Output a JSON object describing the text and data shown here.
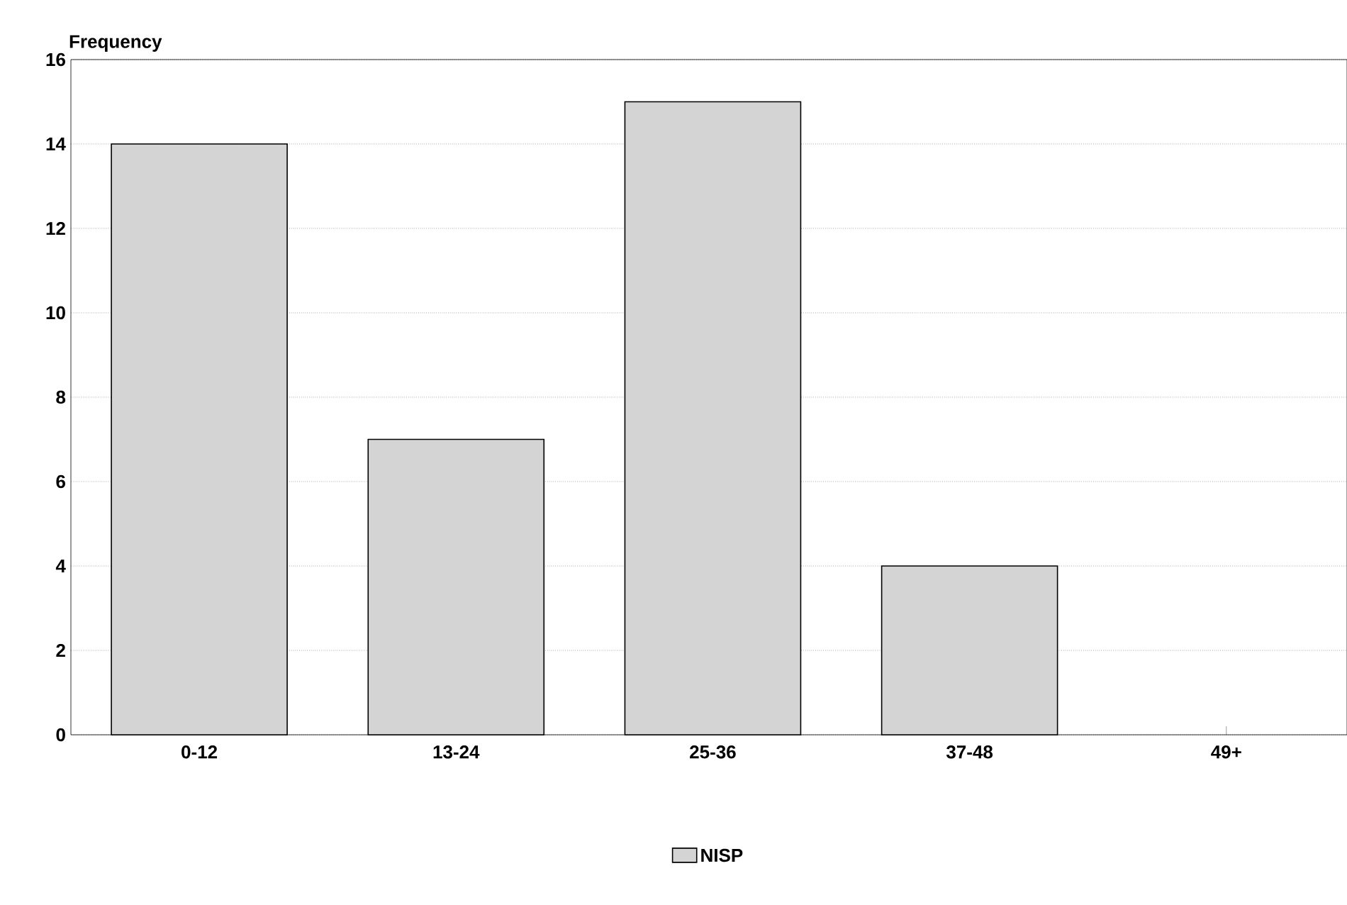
{
  "chart_data": {
    "type": "bar",
    "ylabel": "Frequency",
    "categories": [
      "0-12",
      "13-24",
      "25-36",
      "37-48",
      "49+"
    ],
    "series": [
      {
        "name": "NISP",
        "color": "#d4d4d4",
        "values": [
          14,
          7,
          15,
          4,
          0
        ]
      }
    ],
    "ylim": [
      0,
      16
    ],
    "yticks": [
      0,
      2,
      4,
      6,
      8,
      10,
      12,
      14,
      16
    ],
    "grid": "y",
    "legend": "bottom"
  }
}
